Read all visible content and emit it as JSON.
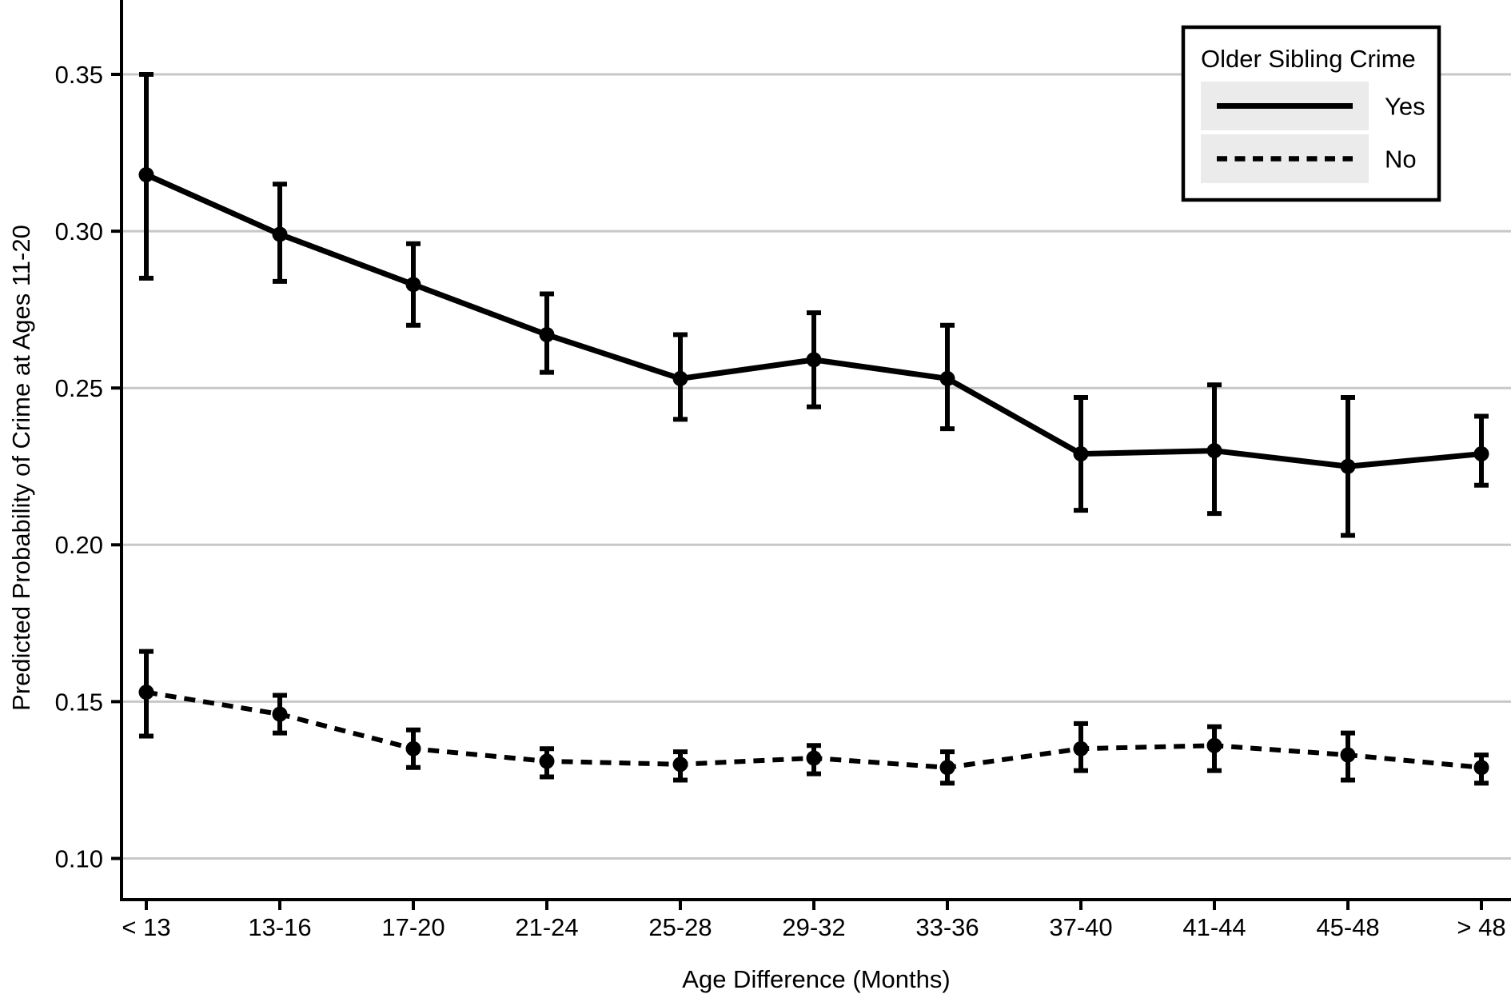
{
  "figure": {
    "background": "#ffffff",
    "y_axis_title": "Predicted Probability of Crime at Ages 11-20",
    "x_axis_title": "Age Difference (Months)"
  },
  "legend": {
    "title": "Older Sibling Crime",
    "entries": [
      {
        "label": "Yes",
        "style": "solid"
      },
      {
        "label": "No",
        "style": "dashed"
      }
    ]
  },
  "colors": {
    "text": "#000000",
    "axis": "#000000",
    "series": "#000000",
    "gridline": "#c8c8c8",
    "legend_border": "#000000",
    "legend_background": "#ffffff",
    "legend_swatch": "#ebebeb"
  },
  "chart_data": {
    "type": "line",
    "title": "",
    "xlabel": "Age Difference (Months)",
    "ylabel": "Predicted Probability of Crime at Ages 11-20",
    "categories": [
      "< 13",
      "13-16",
      "17-20",
      "21-24",
      "25-28",
      "29-32",
      "33-36",
      "37-40",
      "41-44",
      "45-48",
      "> 48"
    ],
    "y_ticks": [
      0.35,
      0.3,
      0.25,
      0.2,
      0.15,
      0.1
    ],
    "ylim": [
      0.087,
      0.374
    ],
    "grid": "horizontal-only",
    "legend_position": "top-right",
    "error_bars": "confidence-interval",
    "series": [
      {
        "name": "Yes",
        "line_style": "solid",
        "values": [
          0.318,
          0.299,
          0.283,
          0.267,
          0.253,
          0.259,
          0.253,
          0.229,
          0.23,
          0.225,
          0.229
        ],
        "ci_low": [
          0.285,
          0.284,
          0.27,
          0.255,
          0.24,
          0.244,
          0.237,
          0.211,
          0.21,
          0.203,
          0.219
        ],
        "ci_high": [
          0.35,
          0.315,
          0.296,
          0.28,
          0.267,
          0.274,
          0.27,
          0.247,
          0.251,
          0.247,
          0.241
        ]
      },
      {
        "name": "No",
        "line_style": "dashed",
        "values": [
          0.153,
          0.146,
          0.135,
          0.131,
          0.13,
          0.132,
          0.129,
          0.135,
          0.136,
          0.133,
          0.129
        ],
        "ci_low": [
          0.139,
          0.14,
          0.129,
          0.126,
          0.125,
          0.127,
          0.124,
          0.128,
          0.128,
          0.125,
          0.124
        ],
        "ci_high": [
          0.166,
          0.152,
          0.141,
          0.135,
          0.134,
          0.136,
          0.134,
          0.143,
          0.142,
          0.14,
          0.133
        ]
      }
    ]
  }
}
